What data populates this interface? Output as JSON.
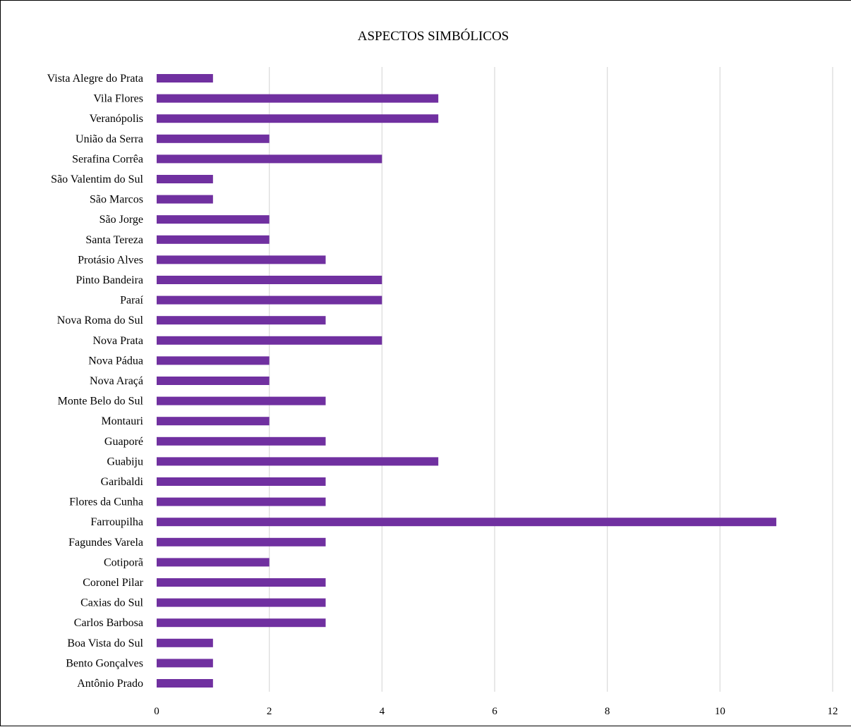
{
  "chart_data": {
    "type": "bar",
    "orientation": "horizontal",
    "title": "ASPECTOS SIMBÓLICOS",
    "xlabel": "",
    "ylabel": "",
    "xlim": [
      0,
      12
    ],
    "ticks": [
      "0",
      "2",
      "4",
      "6",
      "8",
      "10",
      "12"
    ],
    "grid": "vertical",
    "legend": "none",
    "bar_color": "#7030a0",
    "categories": [
      "Vista Alegre do Prata",
      "Vila Flores",
      "Veranópolis",
      "União da Serra",
      "Serafina Corrêa",
      "São Valentim do Sul",
      "São Marcos",
      "São Jorge",
      "Santa Tereza",
      "Protásio Alves",
      "Pinto Bandeira",
      "Paraí",
      "Nova Roma do Sul",
      "Nova Prata",
      "Nova Pádua",
      "Nova Araçá",
      "Monte Belo do Sul",
      "Montauri",
      "Guaporé",
      "Guabiju",
      "Garibaldi",
      "Flores da Cunha",
      "Farroupilha",
      "Fagundes Varela",
      "Cotiporã",
      "Coronel Pilar",
      "Caxias do Sul",
      "Carlos Barbosa",
      "Boa Vista do Sul",
      "Bento Gonçalves",
      "Antônio Prado"
    ],
    "values": [
      1,
      5,
      5,
      2,
      4,
      1,
      1,
      2,
      2,
      3,
      4,
      4,
      3,
      4,
      2,
      2,
      3,
      2,
      3,
      5,
      3,
      3,
      11,
      3,
      2,
      3,
      3,
      3,
      1,
      1,
      1
    ]
  }
}
